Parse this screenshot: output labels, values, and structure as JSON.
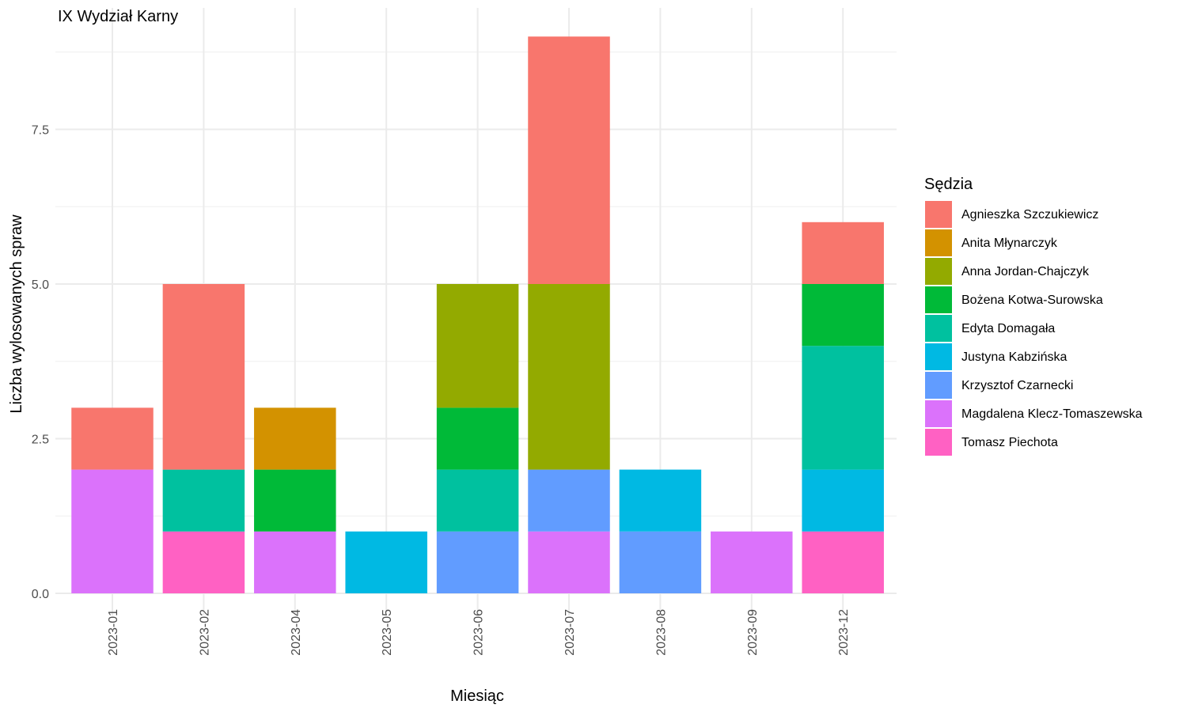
{
  "chart_data": {
    "type": "bar",
    "stacked": true,
    "title": "IX Wydział Karny",
    "xlabel": "Miesiąc",
    "ylabel": "Liczba wylosowanych spraw",
    "ylim": [
      0,
      9.45
    ],
    "yticks": [
      0,
      2.5,
      5,
      7.5
    ],
    "ytick_labels": [
      "0.0",
      "2.5",
      "5.0",
      "7.5"
    ],
    "grid": true,
    "legend_title": "Sędzia",
    "legend_position": "right",
    "categories": [
      "2023-01",
      "2023-02",
      "2023-04",
      "2023-05",
      "2023-06",
      "2023-07",
      "2023-08",
      "2023-09",
      "2023-12"
    ],
    "series": [
      {
        "name": "Agnieszka Szczukiewicz",
        "color": "#F8766D",
        "values": [
          1,
          3,
          0,
          0,
          0,
          4,
          0,
          0,
          1
        ]
      },
      {
        "name": "Anita Młynarczyk",
        "color": "#D39200",
        "values": [
          0,
          0,
          1,
          0,
          0,
          0,
          0,
          0,
          0
        ]
      },
      {
        "name": "Anna Jordan-Chajczyk",
        "color": "#93AA00",
        "values": [
          0,
          0,
          0,
          0,
          2,
          3,
          0,
          0,
          0
        ]
      },
      {
        "name": "Bożena Kotwa-Surowska",
        "color": "#00BA38",
        "values": [
          0,
          0,
          1,
          0,
          1,
          0,
          0,
          0,
          1
        ]
      },
      {
        "name": "Edyta Domagała",
        "color": "#00C19F",
        "values": [
          0,
          1,
          0,
          0,
          1,
          0,
          0,
          0,
          2
        ]
      },
      {
        "name": "Justyna Kabzińska",
        "color": "#00B9E3",
        "values": [
          0,
          0,
          0,
          1,
          0,
          0,
          1,
          0,
          1
        ]
      },
      {
        "name": "Krzysztof Czarnecki",
        "color": "#619CFF",
        "values": [
          0,
          0,
          0,
          0,
          1,
          1,
          1,
          0,
          0
        ]
      },
      {
        "name": "Magdalena Klecz-Tomaszewska",
        "color": "#DB72FB",
        "values": [
          2,
          0,
          1,
          0,
          0,
          1,
          0,
          1,
          0
        ]
      },
      {
        "name": "Tomasz Piechota",
        "color": "#FF61C3",
        "values": [
          0,
          1,
          0,
          0,
          0,
          0,
          0,
          0,
          1
        ]
      }
    ]
  }
}
